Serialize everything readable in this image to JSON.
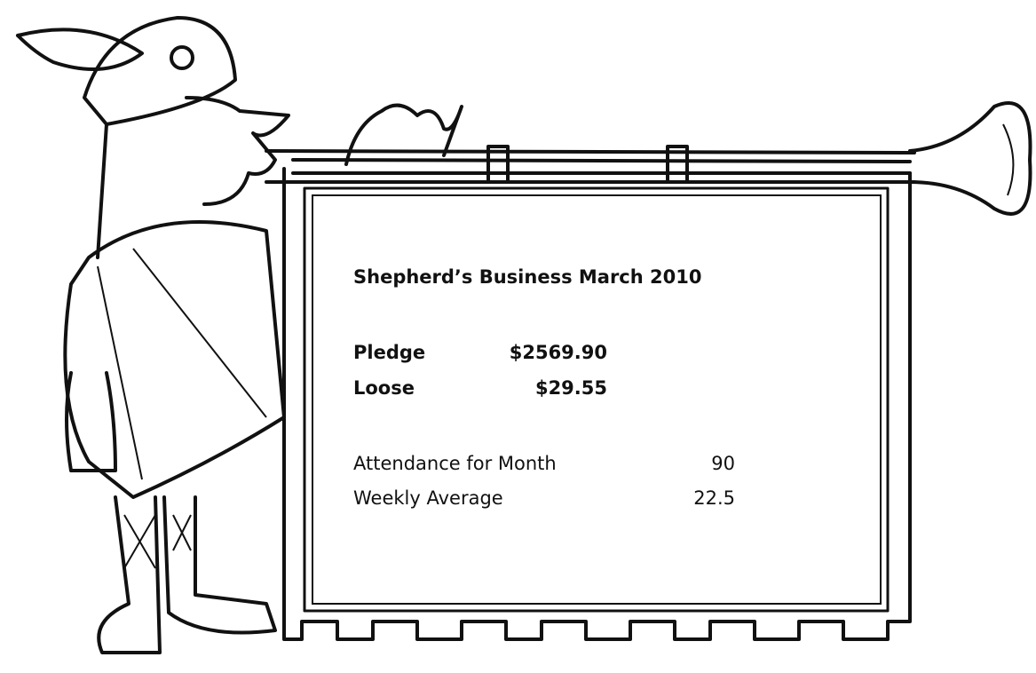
{
  "title": "Shepherd’s Business March 2010",
  "offerings": [
    {
      "label": "Pledge",
      "amount": "$2569.90"
    },
    {
      "label": "Loose",
      "amount": "$29.55"
    }
  ],
  "attendance": [
    {
      "label": "Attendance for Month",
      "value": "90"
    },
    {
      "label": "Weekly Average",
      "value": "22.5"
    }
  ]
}
